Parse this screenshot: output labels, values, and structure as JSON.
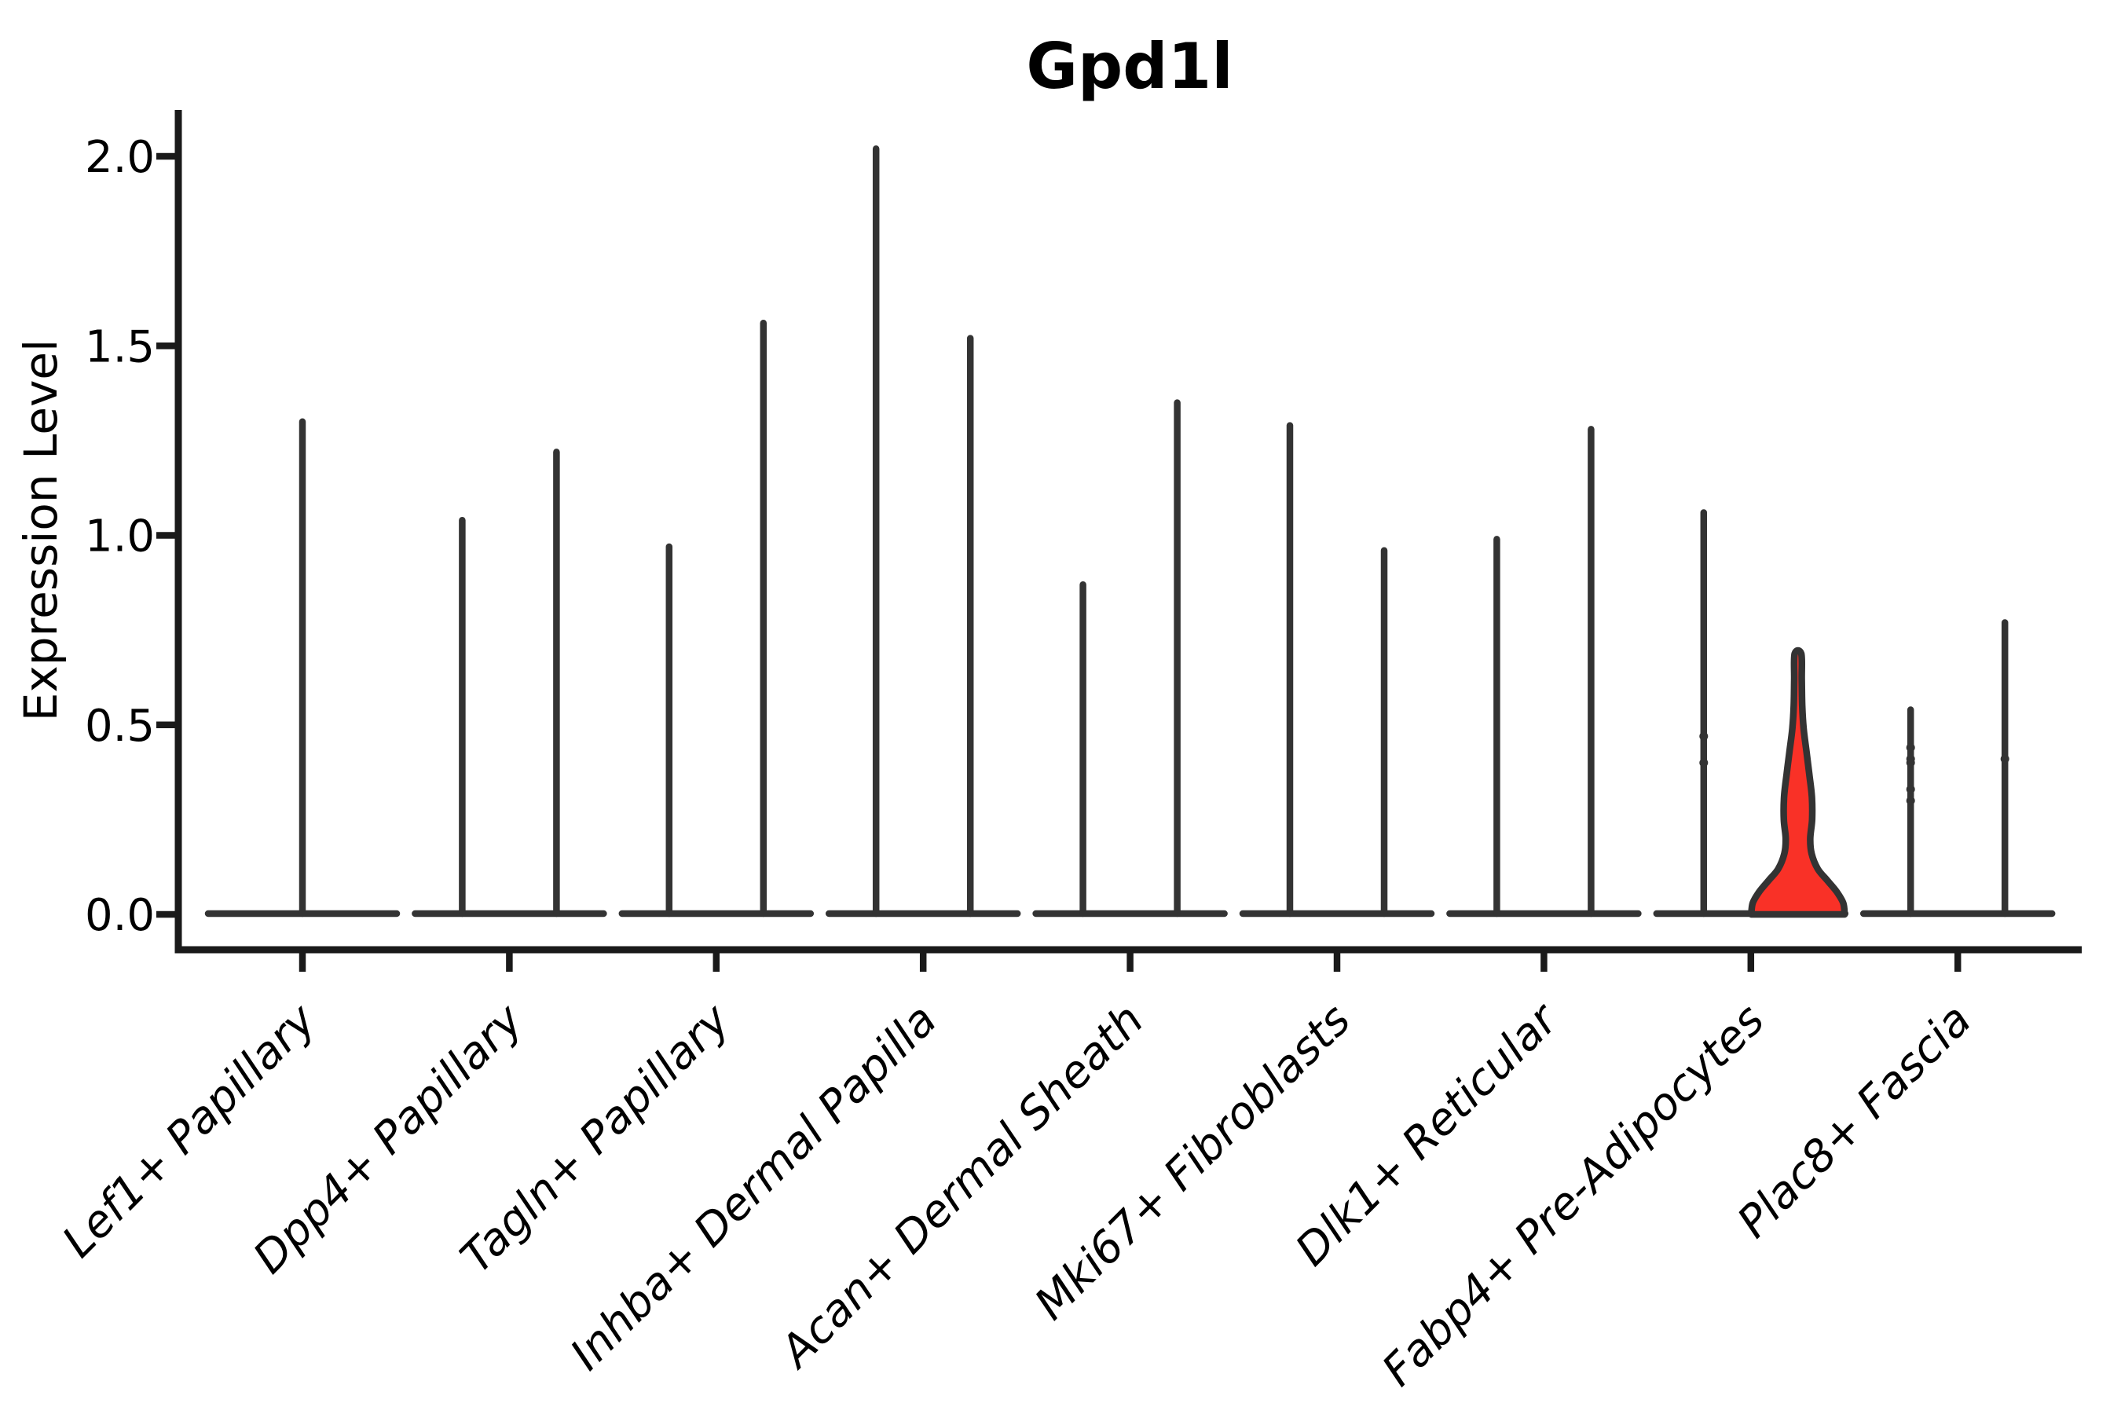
{
  "title": "Gpd1l",
  "colors": {
    "background": "#ffffff",
    "axis": "#1a1a1a",
    "violin_stroke": "#333333",
    "highlight_fill": "#f93127",
    "text": "#000000"
  },
  "chart_data": {
    "type": "violin",
    "title": "Gpd1l",
    "xlabel": "",
    "ylabel": "Expression Level",
    "ylim": [
      0,
      2.12
    ],
    "yticks": [
      "0.0",
      "0.5",
      "1.0",
      "1.5",
      "2.0"
    ],
    "ytick_values": [
      0.0,
      0.5,
      1.0,
      1.5,
      2.0
    ],
    "grid": false,
    "legend": "none",
    "categories": [
      "Lef1+ Papillary",
      "Dpp4+ Papillary",
      "Tagln+ Papillary",
      "Inhba+ Dermal Papilla",
      "Acan+ Dermal Sheath",
      "Mki67+ Fibroblasts",
      "Dlk1+ Reticular",
      "Fabp4+ Pre-Adipocytes",
      "Plac8+ Fascia"
    ],
    "groups": [
      {
        "category": "Lef1+ Papillary",
        "violins": [
          {
            "max": 1.3,
            "span": "full"
          }
        ]
      },
      {
        "category": "Dpp4+ Papillary",
        "violins": [
          {
            "max": 1.04
          },
          {
            "max": 1.22
          }
        ]
      },
      {
        "category": "Tagln+ Papillary",
        "violins": [
          {
            "max": 0.97
          },
          {
            "max": 1.56
          }
        ]
      },
      {
        "category": "Inhba+ Dermal Papilla",
        "violins": [
          {
            "max": 2.02
          },
          {
            "max": 1.52
          }
        ]
      },
      {
        "category": "Acan+ Dermal Sheath",
        "violins": [
          {
            "max": 0.87
          },
          {
            "max": 1.35
          }
        ]
      },
      {
        "category": "Mki67+ Fibroblasts",
        "violins": [
          {
            "max": 1.29
          },
          {
            "max": 0.96
          }
        ]
      },
      {
        "category": "Dlk1+ Reticular",
        "violins": [
          {
            "max": 0.99
          },
          {
            "max": 1.28
          }
        ]
      },
      {
        "category": "Fabp4+ Pre-Adipocytes",
        "violins": [
          {
            "max": 1.06,
            "dots": [
              0.47,
              0.4
            ]
          },
          {
            "max": 0.69,
            "highlighted": true,
            "profile": [
              [
                0.0,
                0.99
              ],
              [
                0.03,
                0.96
              ],
              [
                0.06,
                0.82
              ],
              [
                0.09,
                0.62
              ],
              [
                0.12,
                0.42
              ],
              [
                0.16,
                0.29
              ],
              [
                0.2,
                0.26
              ],
              [
                0.25,
                0.3
              ],
              [
                0.31,
                0.295
              ],
              [
                0.37,
                0.24
              ],
              [
                0.43,
                0.18
              ],
              [
                0.49,
                0.12
              ],
              [
                0.55,
                0.09
              ],
              [
                0.62,
                0.08
              ],
              [
                0.688,
                0.07
              ]
            ]
          }
        ]
      },
      {
        "category": "Plac8+ Fascia",
        "violins": [
          {
            "max": 0.54,
            "dots": [
              0.44,
              0.41,
              0.4,
              0.33,
              0.3
            ]
          },
          {
            "max": 0.77,
            "dots": [
              0.41
            ]
          }
        ]
      }
    ]
  }
}
